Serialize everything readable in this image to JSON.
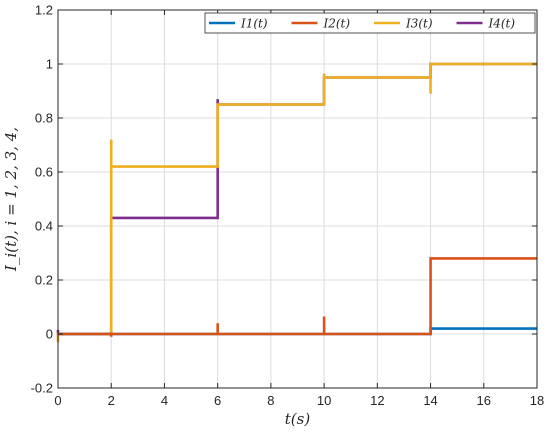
{
  "chart_data": {
    "type": "line",
    "title": "",
    "xlabel": "t(s)",
    "ylabel": "I_i(t), i = 1, 2, 3, 4,",
    "xlim": [
      0,
      18
    ],
    "ylim": [
      -0.2,
      1.2
    ],
    "x_ticks": [
      0,
      2,
      4,
      6,
      8,
      10,
      12,
      14,
      16,
      18
    ],
    "y_ticks": [
      -0.2,
      0,
      0.2,
      0.4,
      0.6,
      0.8,
      1,
      1.2
    ],
    "x_tick_labels": [
      "0",
      "2",
      "4",
      "6",
      "8",
      "10",
      "12",
      "14",
      "16",
      "18"
    ],
    "y_tick_labels": [
      "-0.2",
      "0",
      "0.2",
      "0.4",
      "0.6",
      "0.8",
      "1",
      "1.2"
    ],
    "grid": true,
    "legend": {
      "placement": "top-right",
      "orientation": "horizontal"
    },
    "series": [
      {
        "name": "I1(t)",
        "color": "#0072BD",
        "x": [
          0,
          14,
          14,
          18
        ],
        "y": [
          0,
          0,
          0.02,
          0.02
        ]
      },
      {
        "name": "I2(t)",
        "color": "#D95319",
        "x": [
          0,
          2,
          2,
          2,
          6,
          6,
          6,
          10,
          10,
          10,
          14,
          14,
          14,
          18
        ],
        "y": [
          0,
          0,
          -0.01,
          0,
          0,
          0.04,
          0,
          0,
          0.065,
          0,
          0,
          0.02,
          0.28,
          0.28
        ]
      },
      {
        "name": "I3(t)",
        "color": "#EDB120",
        "x": [
          0,
          0,
          0,
          2,
          2,
          2,
          6,
          6,
          10,
          10,
          10,
          14,
          14,
          14,
          18
        ],
        "y": [
          0,
          -0.03,
          0,
          0,
          0.72,
          0.62,
          0.62,
          0.85,
          0.85,
          0.965,
          0.95,
          0.95,
          0.89,
          1.0,
          1.0
        ]
      },
      {
        "name": "I4(t)",
        "color": "#7E2F8E",
        "x": [
          0,
          0,
          0,
          2,
          2,
          6,
          6,
          6,
          10,
          10,
          14,
          14,
          18
        ],
        "y": [
          0,
          0.015,
          0,
          0,
          0.43,
          0.43,
          0.87,
          0.85,
          0.85,
          0.95,
          0.95,
          1.0,
          1.0
        ]
      }
    ]
  }
}
